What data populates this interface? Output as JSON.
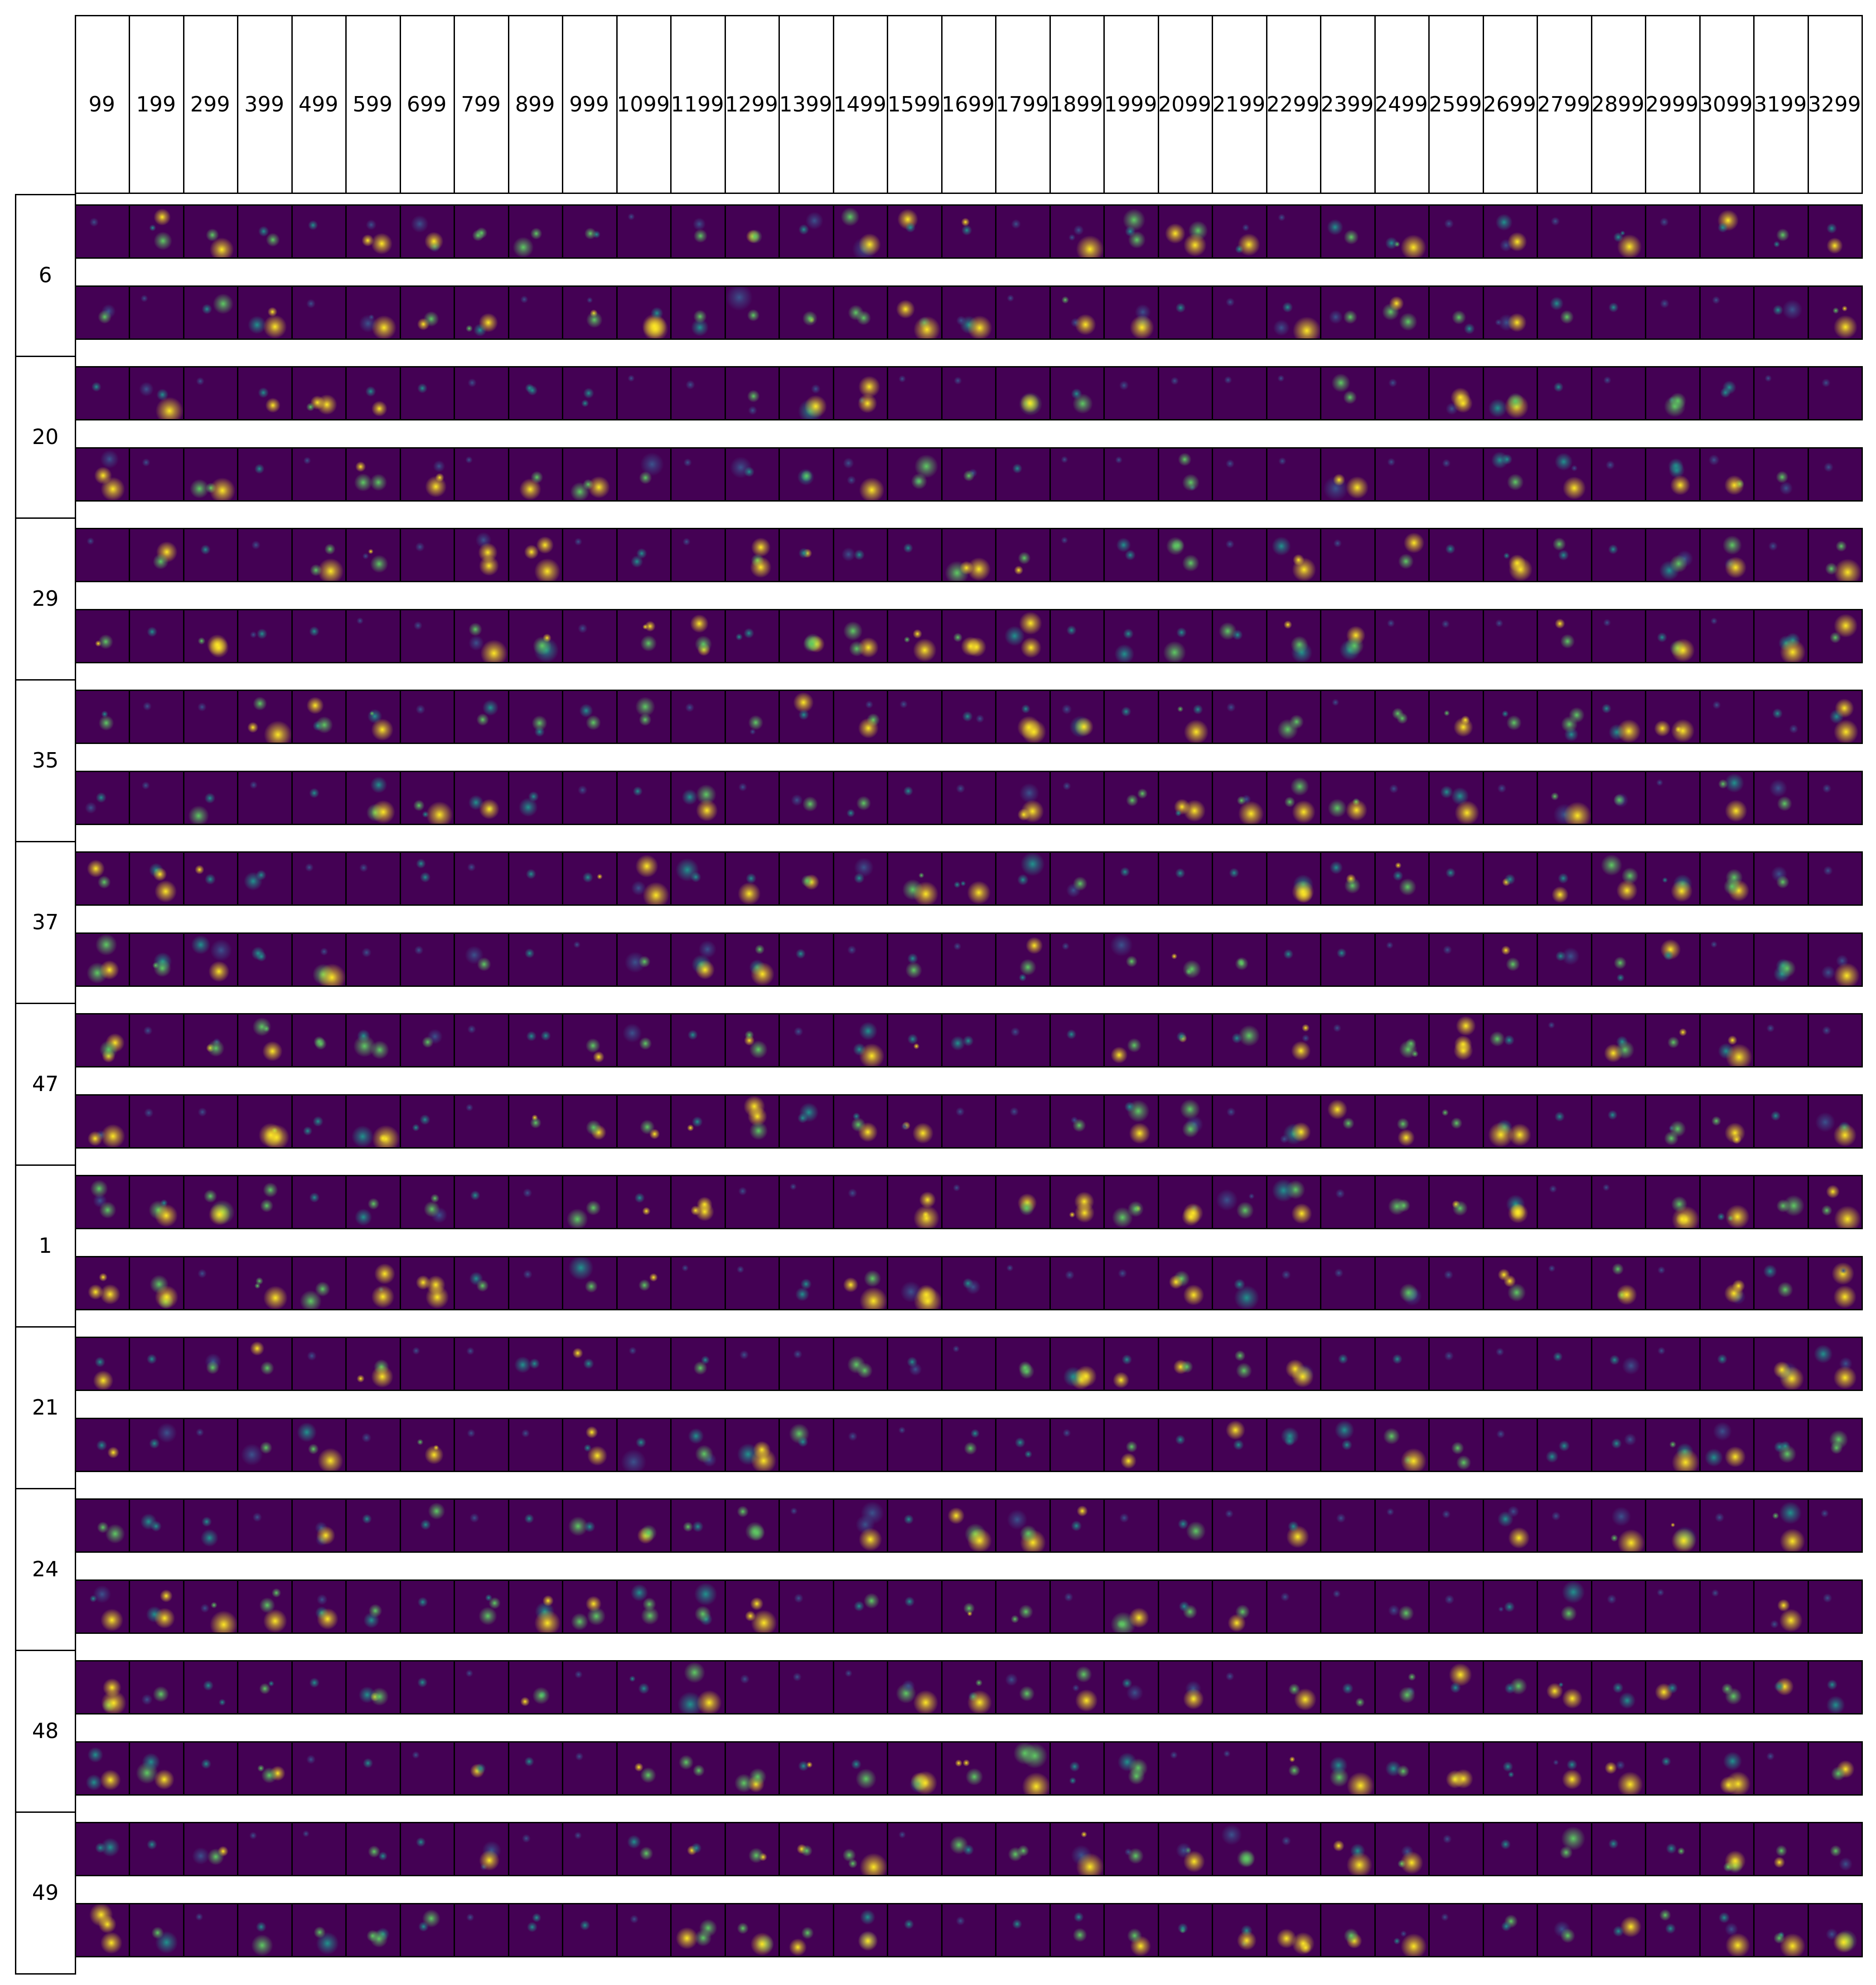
{
  "figure": {
    "column_headers": [
      "99",
      "199",
      "299",
      "399",
      "499",
      "599",
      "699",
      "799",
      "899",
      "999",
      "1099",
      "1199",
      "1299",
      "1399",
      "1499",
      "1599",
      "1699",
      "1799",
      "1899",
      "1999",
      "2099",
      "2199",
      "2299",
      "2399",
      "2499",
      "2599",
      "2699",
      "2799",
      "2899",
      "2999",
      "3099",
      "3199",
      "3299"
    ],
    "row_labels": [
      "6",
      "20",
      "29",
      "35",
      "37",
      "47",
      "1",
      "21",
      "24",
      "48",
      "49"
    ],
    "colormap": "viridis",
    "colors": {
      "background_cell": "#440154",
      "mid_low": "#3b528b",
      "mid": "#21918c",
      "mid_high": "#5ec962",
      "peak": "#fde725",
      "frame": "#000000"
    }
  }
}
